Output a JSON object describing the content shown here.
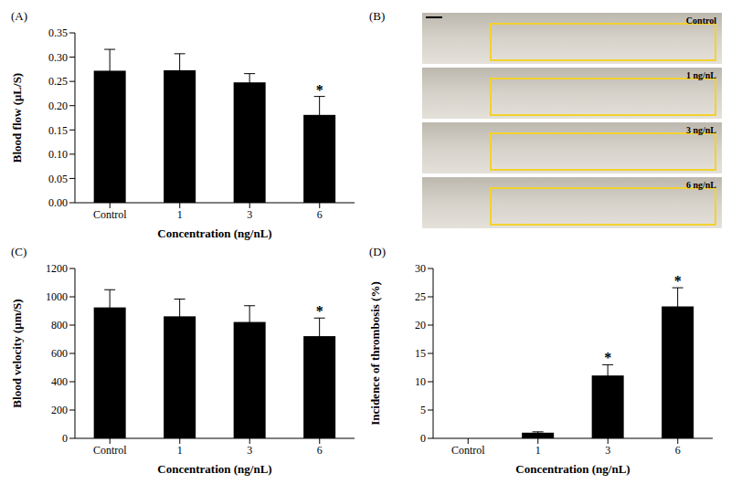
{
  "chart_data": [
    {
      "type": "bar",
      "panel_label": "(A)",
      "x_label": "Concentration (ng/nL)",
      "y_label": "Blood flow (μL/S)",
      "categories": [
        "Control",
        "1",
        "3",
        "6"
      ],
      "values": [
        0.272,
        0.273,
        0.248,
        0.181
      ],
      "errors": [
        0.044,
        0.034,
        0.018,
        0.038
      ],
      "significance": [
        null,
        null,
        null,
        "*"
      ],
      "color": "#000000",
      "ylim": [
        0,
        0.35
      ],
      "yticks": [
        {
          "value": 0,
          "label": "0.00"
        },
        {
          "value": 0.05,
          "label": "0.05"
        },
        {
          "value": 0.1,
          "label": "0.10"
        },
        {
          "value": 0.15,
          "label": "0.15"
        },
        {
          "value": 0.2,
          "label": "0.20"
        },
        {
          "value": 0.25,
          "label": "0.25"
        },
        {
          "value": 0.3,
          "label": "0.30"
        },
        {
          "value": 0.35,
          "label": "0.35"
        }
      ],
      "grid": false
    },
    {
      "type": "image",
      "panel_label": "(B)",
      "labels": [
        "Control",
        "1 ng/nL",
        "3 ng/nL",
        "6 ng/nL"
      ]
    },
    {
      "type": "bar",
      "panel_label": "(C)",
      "x_label": "Concentration (ng/nL)",
      "y_label": "Blood velocity (μm/S)",
      "categories": [
        "Control",
        "1",
        "3",
        "6"
      ],
      "values": [
        925,
        862,
        822,
        722
      ],
      "errors": [
        125,
        122,
        115,
        128
      ],
      "significance": [
        null,
        null,
        null,
        "*"
      ],
      "color": "#000000",
      "ylim": [
        0,
        1200
      ],
      "yticks": [
        0,
        200,
        400,
        600,
        800,
        1000,
        1200
      ],
      "grid": false
    },
    {
      "type": "bar",
      "panel_label": "(D)",
      "x_label": "Concentration (ng/nL)",
      "y_label": "Incidence of thrombosis (%)",
      "categories": [
        "Control",
        "1",
        "3",
        "6"
      ],
      "values": [
        0,
        1.0,
        11.1,
        23.3
      ],
      "errors": [
        0,
        0.15,
        1.9,
        3.3
      ],
      "significance": [
        null,
        null,
        "*",
        "*"
      ],
      "color": "#000000",
      "ylim": [
        0,
        30
      ],
      "yticks": [
        0,
        5,
        10,
        15,
        20,
        25,
        30
      ],
      "grid": false
    }
  ]
}
